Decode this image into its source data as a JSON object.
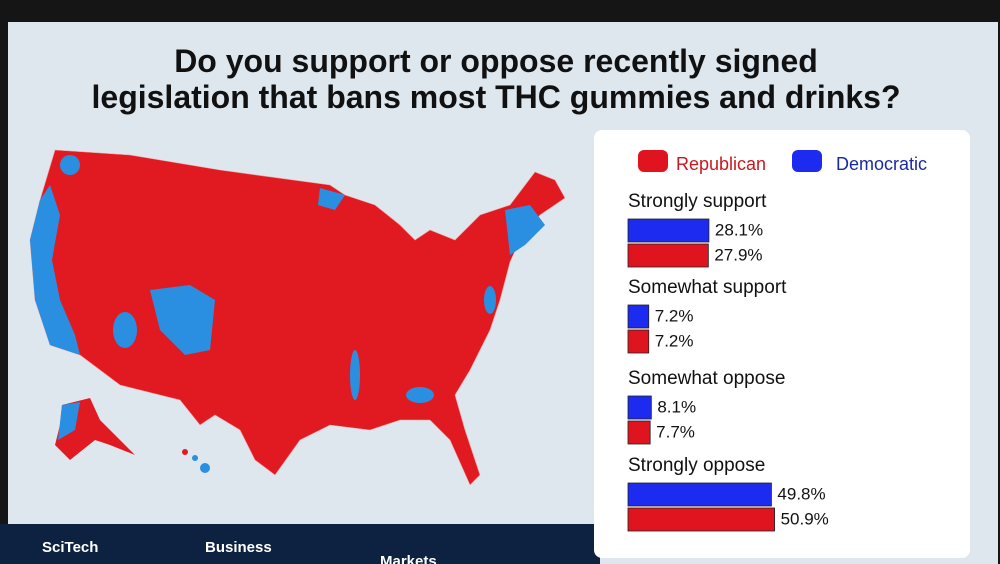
{
  "chart_data": {
    "type": "bar",
    "orientation": "horizontal",
    "title": "Do you support or oppose recently signed legislation that bans most THC gummies and drinks?",
    "categories": [
      "Strongly support",
      "Somewhat support",
      "Somewhat oppose",
      "Strongly oppose"
    ],
    "series": [
      {
        "name": "Republican",
        "color": "#e0141e",
        "values": [
          27.9,
          7.2,
          7.7,
          50.9
        ],
        "value_labels": [
          "27.9%",
          "7.2%",
          "7.7%",
          "50.9%"
        ]
      },
      {
        "name": "Democratic",
        "color": "#1d2bf0",
        "values": [
          28.1,
          7.2,
          8.1,
          49.8
        ],
        "value_labels": [
          "28.1%",
          "7.2%",
          "8.1%",
          "49.8%"
        ]
      }
    ]
  },
  "ticker": [
    "SciTech",
    "Business",
    "Markets"
  ]
}
